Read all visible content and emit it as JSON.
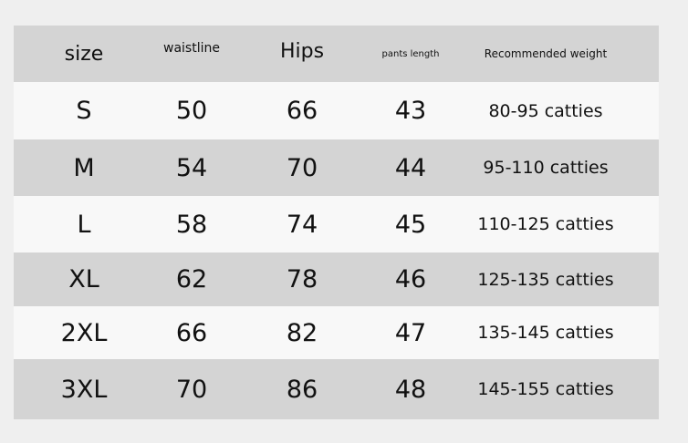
{
  "header": [
    "size",
    "waistline",
    "Hips",
    "pants length",
    "Recommended weight"
  ],
  "rows": [
    [
      "S",
      "50",
      "66",
      "43",
      "80-95 catties"
    ],
    [
      "M",
      "54",
      "70",
      "44",
      "95-110 catties"
    ],
    [
      "L",
      "58",
      "74",
      "45",
      "110-125 catties"
    ],
    [
      "XL",
      "62",
      "78",
      "46",
      "125-135 catties"
    ],
    [
      "2XL",
      "66",
      "82",
      "47",
      "135-145 catties"
    ],
    [
      "3XL",
      "70",
      "86",
      "48",
      "145-155 catties"
    ]
  ],
  "colors": {
    "header_bg": "#d4d4d4",
    "row_light": "#f8f8f8",
    "row_gray": "#d4d4d4",
    "page_bg": "#efefef"
  }
}
